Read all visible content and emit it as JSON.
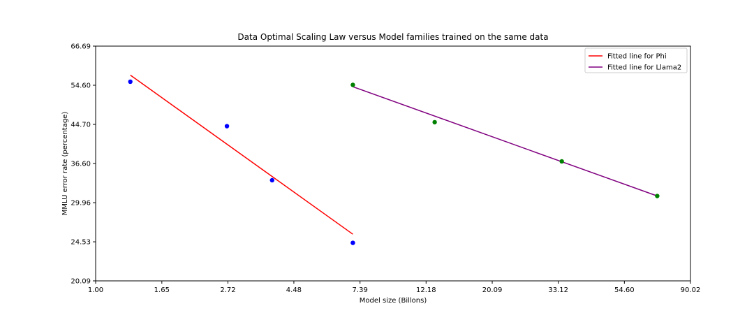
{
  "chart_data": {
    "type": "scatter",
    "title": "Data Optimal Scaling Law versus Model families trained on the same data",
    "xlabel": "Model size (Billons)",
    "ylabel": "MMLU error rate (percentage)",
    "x_scale": "log",
    "y_scale": "log",
    "xlim": [
      1.0,
      90.02
    ],
    "ylim": [
      20.09,
      66.69
    ],
    "x_ticks": [
      1.0,
      1.65,
      2.72,
      4.48,
      7.39,
      12.18,
      20.09,
      33.12,
      54.6,
      90.02
    ],
    "x_tick_labels": [
      "1.00",
      "1.65",
      "2.72",
      "4.48",
      "7.39",
      "12.18",
      "20.09",
      "33.12",
      "54.60",
      "90.02"
    ],
    "y_ticks": [
      20.09,
      24.53,
      29.96,
      36.6,
      44.7,
      54.6,
      66.69
    ],
    "y_tick_labels": [
      "20.09",
      "24.53",
      "29.96",
      "36.60",
      "44.70",
      "54.60",
      "66.69"
    ],
    "grid": false,
    "legend_position": "top-right",
    "points": [
      {
        "group": "phi",
        "color": "#0000ff",
        "values": [
          [
            1.3,
            55.6
          ],
          [
            2.7,
            44.3
          ],
          [
            3.8,
            33.6
          ],
          [
            7.0,
            24.4
          ]
        ]
      },
      {
        "group": "llama2",
        "color": "#008000",
        "values": [
          [
            7.0,
            54.7
          ],
          [
            13.0,
            45.2
          ],
          [
            34.0,
            37.0
          ],
          [
            70.0,
            31.0
          ]
        ]
      }
    ],
    "series": [
      {
        "name": "Fitted line for Phi",
        "color": "#ff0000",
        "values": [
          [
            1.3,
            57.5
          ],
          [
            7.0,
            25.5
          ]
        ]
      },
      {
        "name": "Fitted line for Llama2",
        "color": "#800080",
        "values": [
          [
            7.0,
            54.2
          ],
          [
            70.0,
            31.0
          ]
        ]
      }
    ]
  }
}
